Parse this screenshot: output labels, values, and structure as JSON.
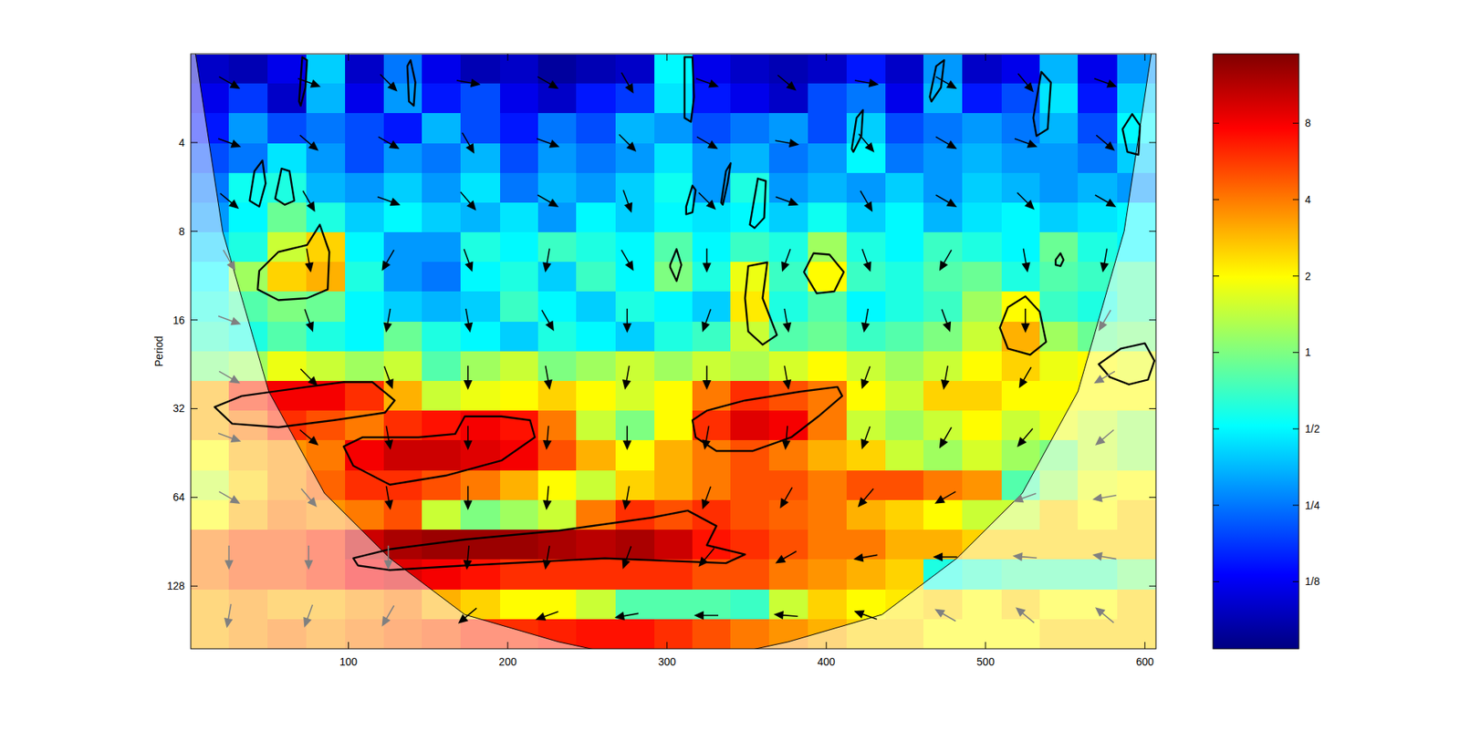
{
  "chart_data": {
    "type": "heatmap",
    "y_label": "Period",
    "x": [
      13,
      37,
      61,
      86,
      110,
      134,
      158,
      183,
      207,
      231,
      255,
      280,
      304,
      328,
      352,
      376,
      401,
      425,
      449,
      473,
      498,
      522,
      546,
      570,
      595
    ],
    "y": [
      2.25,
      2.83,
      3.58,
      4.51,
      5.69,
      7.18,
      9.06,
      11.4,
      14.4,
      18.2,
      22.9,
      29,
      36.5,
      46.1,
      58.2,
      73.4,
      92.6,
      117,
      147.5,
      186
    ],
    "values": [
      [
        0.1,
        0.09,
        0.12,
        0.4,
        0.1,
        0.25,
        0.12,
        0.09,
        0.1,
        0.08,
        0.09,
        0.1,
        0.5,
        0.12,
        0.1,
        0.09,
        0.1,
        0.15,
        0.1,
        0.3,
        0.1,
        0.12,
        0.35,
        0.12,
        0.3
      ],
      [
        0.12,
        0.18,
        0.1,
        0.35,
        0.12,
        0.3,
        0.15,
        0.2,
        0.12,
        0.1,
        0.15,
        0.18,
        0.45,
        0.15,
        0.12,
        0.1,
        0.2,
        0.25,
        0.12,
        0.35,
        0.15,
        0.2,
        0.45,
        0.15,
        0.4
      ],
      [
        0.15,
        0.3,
        0.2,
        0.25,
        0.2,
        0.15,
        0.35,
        0.2,
        0.15,
        0.25,
        0.2,
        0.35,
        0.3,
        0.2,
        0.25,
        0.3,
        0.2,
        0.4,
        0.2,
        0.25,
        0.3,
        0.25,
        0.35,
        0.2,
        0.5
      ],
      [
        0.2,
        0.25,
        0.45,
        0.3,
        0.2,
        0.3,
        0.25,
        0.35,
        0.2,
        0.3,
        0.25,
        0.3,
        0.45,
        0.3,
        0.35,
        0.25,
        0.3,
        0.5,
        0.25,
        0.3,
        0.35,
        0.3,
        0.3,
        0.25,
        0.4
      ],
      [
        0.25,
        0.55,
        0.6,
        0.35,
        0.3,
        0.4,
        0.3,
        0.45,
        0.25,
        0.35,
        0.3,
        0.4,
        0.55,
        0.3,
        0.6,
        0.3,
        0.35,
        0.3,
        0.4,
        0.3,
        0.4,
        0.35,
        0.3,
        0.35,
        0.3
      ],
      [
        0.3,
        0.5,
        0.9,
        0.6,
        0.4,
        0.5,
        0.4,
        0.35,
        0.45,
        0.3,
        0.5,
        0.4,
        0.5,
        0.45,
        0.5,
        0.4,
        0.55,
        0.4,
        0.5,
        0.35,
        0.45,
        0.5,
        0.4,
        0.45,
        0.5
      ],
      [
        0.4,
        0.6,
        1.5,
        2.5,
        0.5,
        0.3,
        0.3,
        0.6,
        0.5,
        0.7,
        0.6,
        0.5,
        0.8,
        0.5,
        0.7,
        0.6,
        1.2,
        0.6,
        0.5,
        0.7,
        0.6,
        0.5,
        0.9,
        0.6,
        0.5
      ],
      [
        0.5,
        1.2,
        2.5,
        3,
        0.6,
        0.3,
        0.25,
        0.5,
        0.6,
        0.4,
        0.7,
        0.5,
        1,
        0.6,
        1.8,
        0.7,
        2,
        0.7,
        0.6,
        0.8,
        0.9,
        0.6,
        0.8,
        0.7,
        0.8
      ],
      [
        0.6,
        0.8,
        1,
        0.9,
        0.5,
        0.4,
        0.35,
        0.4,
        0.7,
        0.5,
        0.4,
        0.6,
        0.5,
        0.4,
        2.2,
        0.6,
        0.8,
        0.5,
        0.6,
        0.7,
        1.2,
        2,
        0.7,
        0.6,
        0.8
      ],
      [
        0.7,
        0.6,
        0.8,
        0.6,
        0.5,
        0.9,
        0.6,
        0.5,
        0.4,
        0.6,
        0.5,
        0.4,
        0.6,
        0.7,
        1.5,
        0.8,
        0.9,
        0.7,
        0.8,
        1,
        1.5,
        3,
        1.2,
        0.9,
        1
      ],
      [
        1,
        1.2,
        1.8,
        1.5,
        1.2,
        1.5,
        0.8,
        1.2,
        1.5,
        1,
        1.2,
        1.5,
        1.2,
        1.5,
        1.3,
        1.6,
        2,
        1.5,
        1.2,
        1.5,
        2,
        2.5,
        1.8,
        2,
        1.8
      ],
      [
        3,
        6,
        8,
        8,
        6,
        3,
        1.5,
        1.8,
        2,
        2.5,
        2,
        1.6,
        2,
        4,
        6,
        5,
        4,
        2,
        1.5,
        2.5,
        2.5,
        2,
        2,
        2,
        2
      ],
      [
        3,
        4,
        6,
        5,
        4,
        6,
        7,
        8,
        7,
        4,
        1.5,
        1,
        2,
        6,
        9,
        8,
        4,
        1.5,
        1.2,
        1.5,
        2,
        1.5,
        1.8,
        1.5,
        1.2
      ],
      [
        2,
        3,
        3.5,
        4,
        8,
        10,
        10,
        9,
        8,
        5,
        3,
        2,
        3,
        4,
        5,
        4,
        3,
        2.5,
        1.5,
        1.2,
        1.6,
        1.2,
        1,
        1.5,
        1.2
      ],
      [
        1.5,
        2.5,
        3.5,
        4.5,
        6,
        6,
        5,
        4,
        3,
        2,
        1.5,
        2.5,
        3,
        4,
        5,
        5,
        4,
        5,
        5,
        4,
        3.5,
        0.8,
        1.2,
        1.8,
        2
      ],
      [
        2,
        3,
        4,
        3.5,
        4,
        5,
        1.5,
        1,
        1.2,
        1.5,
        4,
        6,
        5,
        6,
        5,
        4.5,
        4,
        3,
        2.5,
        2,
        1.5,
        1.5,
        2.5,
        2,
        2.5
      ],
      [
        4,
        5,
        5,
        6,
        10,
        12,
        13,
        13,
        13,
        12,
        11,
        12,
        10,
        7,
        6,
        5,
        4,
        4,
        3,
        3,
        2.5,
        2.5,
        2.5,
        2.5,
        2.5
      ],
      [
        4,
        5,
        5,
        6,
        8,
        9,
        8,
        7,
        6,
        6,
        6,
        6,
        6,
        5,
        5,
        4,
        3.5,
        3,
        2.5,
        0.6,
        0.7,
        0.8,
        0.8,
        0.8,
        1
      ],
      [
        3,
        3.5,
        3,
        3,
        3.5,
        4,
        3,
        2.5,
        2,
        2,
        1.5,
        0.8,
        0.8,
        0.8,
        0.7,
        1.5,
        2.5,
        2,
        2.2,
        2.5,
        2,
        2.5,
        2,
        2,
        2.5
      ],
      [
        3,
        3.5,
        4,
        3.5,
        4,
        4.5,
        5,
        6,
        6,
        6.5,
        7,
        7,
        6,
        5,
        4,
        3.5,
        3,
        2.5,
        2.5,
        2,
        2,
        2,
        2.5,
        2.5,
        2.5
      ]
    ],
    "xlim": [
      1,
      607
    ],
    "xticks": [
      100,
      200,
      300,
      400,
      500,
      600
    ],
    "ylim": [
      2,
      209
    ],
    "yticks": [
      4,
      8,
      16,
      32,
      64,
      128
    ],
    "log": "y",
    "colorbar": {
      "range": [
        0.068,
        15
      ],
      "ticks": [
        {
          "value": 0.125,
          "label": "1/8"
        },
        {
          "value": 0.25,
          "label": "1/4"
        },
        {
          "value": 0.5,
          "label": "1/2"
        },
        1,
        2,
        4,
        8
      ]
    },
    "cone_of_influence": {
      "x": [
        4,
        21,
        50,
        85,
        126,
        173,
        232,
        304,
        376,
        435,
        482,
        523,
        558,
        587,
        604
      ],
      "y": [
        2,
        8,
        28,
        62,
        103,
        160,
        198,
        240,
        198,
        160,
        103,
        62,
        28,
        8,
        2
      ]
    },
    "significance_contours": [
      {
        "x": [
          16,
          33,
          74,
          97,
          115,
          129,
          123,
          91,
          56,
          27
        ],
        "y": [
          31.6,
          29,
          27,
          26,
          26,
          30,
          33,
          35,
          37,
          36
        ]
      },
      {
        "x": [
          97,
          103,
          126,
          161,
          196,
          217,
          214,
          196,
          173,
          167,
          144,
          109
        ],
        "y": [
          43,
          50,
          58,
          54,
          48,
          40,
          35,
          34,
          34,
          39,
          40,
          40
        ]
      },
      {
        "x": [
          316,
          325,
          349,
          384,
          407,
          410,
          395,
          378,
          354,
          331,
          318
        ],
        "y": [
          35,
          32.5,
          30,
          28,
          27,
          29,
          34,
          40,
          44.5,
          44.5,
          40
        ]
      },
      {
        "x": [
          103,
          126,
          173,
          232,
          290,
          313,
          331,
          325,
          349,
          337,
          261,
          173,
          126,
          106
        ],
        "y": [
          103,
          96,
          89,
          83,
          75,
          71,
          80,
          93,
          100,
          107,
          103,
          109,
          113,
          109
        ]
      },
      {
        "x": [
          44,
          56,
          74,
          82,
          88,
          87,
          74,
          56,
          43
        ],
        "y": [
          10.9,
          9.4,
          8.9,
          7.6,
          9.4,
          12.6,
          13.5,
          13.7,
          12.6
        ]
      },
      {
        "x": [
          351,
          363,
          360,
          369,
          360,
          351,
          349
        ],
        "y": [
          10.5,
          10.2,
          13.5,
          18,
          19.4,
          17.5,
          13.5
        ]
      },
      {
        "x": [
          386,
          392,
          402,
          411,
          405,
          394
        ],
        "y": [
          11,
          9.5,
          9.6,
          11,
          12.8,
          13
        ]
      },
      {
        "x": [
          509,
          514,
          525,
          534,
          538,
          528,
          514
        ],
        "y": [
          17,
          14.5,
          13.3,
          15,
          19,
          21,
          20
        ]
      },
      {
        "x": [
          571,
          585,
          600,
          606,
          602,
          590,
          578
        ],
        "y": [
          22.6,
          20,
          19.2,
          22,
          25.5,
          26.5,
          25
        ]
      },
      {
        "x": [
          38,
          41,
          46,
          48,
          44
        ],
        "y": [
          6.3,
          5,
          4.6,
          5.5,
          6.6
        ]
      },
      {
        "x": [
          54,
          58,
          63,
          66,
          60
        ],
        "y": [
          6.2,
          4.9,
          5,
          6.3,
          6.5
        ]
      },
      {
        "x": [
          69,
          71,
          74,
          73,
          70
        ],
        "y": [
          2.9,
          2.05,
          2.1,
          2.6,
          3
        ]
      },
      {
        "x": [
          137,
          139,
          142,
          141,
          138
        ],
        "y": [
          2.2,
          2.1,
          2.5,
          3,
          2.9
        ]
      },
      {
        "x": [
          311,
          316,
          317,
          315,
          311
        ],
        "y": [
          2.05,
          2.05,
          2.8,
          3.4,
          3.3
        ]
      },
      {
        "x": [
          416,
          419,
          423,
          422,
          417
        ],
        "y": [
          4.2,
          3.3,
          3.1,
          3.8,
          4.3
        ]
      },
      {
        "x": [
          465,
          469,
          474,
          472,
          466
        ],
        "y": [
          2.8,
          2.2,
          2.1,
          2.6,
          2.9
        ]
      },
      {
        "x": [
          530,
          535,
          541,
          539,
          532
        ],
        "y": [
          3.3,
          2.3,
          2.5,
          3.6,
          3.8
        ]
      },
      {
        "x": [
          586,
          592,
          597,
          596,
          589
        ],
        "y": [
          3.6,
          3.2,
          3.5,
          4.4,
          4.3
        ]
      },
      {
        "x": [
          302,
          306,
          309,
          306,
          302
        ],
        "y": [
          10.4,
          9.2,
          10.4,
          11.8,
          10.6
        ]
      },
      {
        "x": [
          334,
          337,
          340,
          338,
          335
        ],
        "y": [
          6.4,
          5,
          4.7,
          5.5,
          6.5
        ]
      },
      {
        "x": [
          312,
          316,
          318,
          316,
          312
        ],
        "y": [
          6.6,
          5.6,
          5.8,
          6.9,
          7
        ]
      },
      {
        "x": [
          352,
          357,
          362,
          361,
          355
        ],
        "y": [
          7.6,
          5.3,
          5.4,
          7.2,
          7.8
        ]
      },
      {
        "x": [
          544,
          547,
          549,
          547,
          544
        ],
        "y": [
          10,
          9.5,
          10,
          10.5,
          10.4
        ]
      }
    ],
    "phase_arrows": {
      "x": [
        25,
        75,
        125,
        175,
        225,
        275,
        325,
        375,
        425,
        475,
        525,
        575
      ],
      "y": [
        2.5,
        4,
        6.3,
        10,
        16,
        25,
        40,
        64,
        102,
        161
      ],
      "angles": [
        [
          -30,
          -20,
          -45,
          -10,
          -30,
          -60,
          -20,
          -40,
          -10,
          -30,
          -50,
          -20
        ],
        [
          -20,
          -40,
          -30,
          -60,
          -20,
          -45,
          -30,
          -10,
          -50,
          -30,
          -20,
          -40
        ],
        [
          -40,
          -60,
          -20,
          -50,
          -30,
          -70,
          -45,
          -20,
          -60,
          -30,
          -45,
          -30
        ],
        [
          -60,
          -80,
          -120,
          -70,
          -100,
          -60,
          -90,
          -110,
          -70,
          -120,
          -80,
          -100
        ],
        [
          -20,
          -70,
          -100,
          -80,
          -60,
          -90,
          -110,
          -80,
          -100,
          -70,
          -90,
          -120
        ],
        [
          -30,
          -45,
          -70,
          -90,
          -80,
          -100,
          -90,
          -80,
          -110,
          -100,
          -120,
          -150
        ],
        [
          -20,
          -40,
          -80,
          -90,
          -95,
          -90,
          -100,
          -95,
          -110,
          -120,
          -130,
          -140
        ],
        [
          -30,
          -50,
          -80,
          -90,
          -95,
          -100,
          -110,
          -120,
          -130,
          -150,
          -160,
          -170
        ],
        [
          -90,
          -90,
          -90,
          -95,
          -100,
          -110,
          -130,
          -150,
          -170,
          180,
          175,
          170
        ],
        [
          -100,
          -110,
          -120,
          -140,
          -160,
          -170,
          180,
          175,
          160,
          150,
          140,
          140
        ]
      ]
    }
  }
}
